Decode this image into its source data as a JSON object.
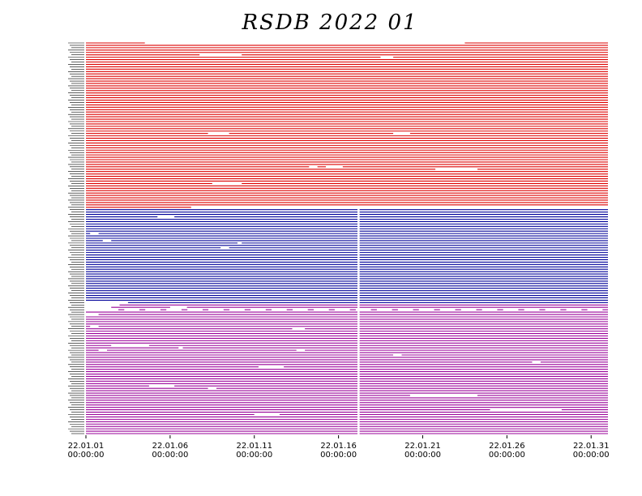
{
  "chart_data": {
    "type": "timeline",
    "title": "RSDB  2022  01",
    "xlabel": "",
    "ylabel": "",
    "x_range": [
      "2022-01-01 00:00:00",
      "2022-02-01 00:00:00"
    ],
    "x_ticks": [
      {
        "date": "22.01.01",
        "time": "00:00:00"
      },
      {
        "date": "22.01.06",
        "time": "00:00:00"
      },
      {
        "date": "22.01.11",
        "time": "00:00:00"
      },
      {
        "date": "22.01.16",
        "time": "00:00:00"
      },
      {
        "date": "22.01.21",
        "time": "00:00:00"
      },
      {
        "date": "22.01.26",
        "time": "00:00:00"
      },
      {
        "date": "22.01.31",
        "time": "00:00:00"
      }
    ],
    "groups": [
      {
        "color": "#dd0000",
        "rows": 70,
        "gaps": [
          {
            "row": 0,
            "from": "2022-01-04 12:00",
            "to": "2022-01-23 12:00"
          },
          {
            "row": 5,
            "from": "2022-01-07 18:00",
            "to": "2022-01-10 06:00"
          },
          {
            "row": 6,
            "from": "2022-01-18 12:00",
            "to": "2022-01-19 06:00"
          },
          {
            "row": 38,
            "from": "2022-01-08 06:00",
            "to": "2022-01-09 12:00"
          },
          {
            "row": 38,
            "from": "2022-01-19 06:00",
            "to": "2022-01-20 06:00"
          },
          {
            "row": 52,
            "from": "2022-01-14 06:00",
            "to": "2022-01-14 18:00"
          },
          {
            "row": 52,
            "from": "2022-01-15 06:00",
            "to": "2022-01-16 06:00"
          },
          {
            "row": 53,
            "from": "2022-01-21 18:00",
            "to": "2022-01-24 06:00"
          },
          {
            "row": 59,
            "from": "2022-01-08 12:00",
            "to": "2022-01-10 06:00"
          },
          {
            "row": 69,
            "from": "2022-01-07 06:00",
            "to": "2022-02-01 00:00"
          }
        ]
      },
      {
        "color": "#000099",
        "rows": 40,
        "gaps": [
          {
            "row": 3,
            "from": "2022-01-05 06:00",
            "to": "2022-01-06 06:00"
          },
          {
            "row": 10,
            "from": "2022-01-01 06:00",
            "to": "2022-01-01 18:00"
          },
          {
            "row": 13,
            "from": "2022-01-02 00:00",
            "to": "2022-01-02 12:00"
          },
          {
            "row": 14,
            "from": "2022-01-10 00:00",
            "to": "2022-01-10 06:00"
          },
          {
            "row": 16,
            "from": "2022-01-09 00:00",
            "to": "2022-01-09 12:00"
          },
          {
            "row": 39,
            "from": "2022-01-01 00:00",
            "to": "2022-01-03 12:00"
          }
        ]
      },
      {
        "color": "#990099",
        "rows": 55,
        "gaps": [
          {
            "row": 0,
            "from": "2022-01-01 00:00",
            "to": "2022-01-03 00:00"
          },
          {
            "row": 1,
            "from": "2022-01-01 00:00",
            "to": "2022-01-02 12:00"
          },
          {
            "row": 1,
            "from": "2022-01-06 00:00",
            "to": "2022-01-07 00:00"
          },
          {
            "row": 2,
            "from": "2022-01-01 00:00",
            "to": "2022-01-03 00:00"
          },
          {
            "row": 4,
            "from": "2022-01-01 00:00",
            "to": "2022-01-01 18:00"
          },
          {
            "row": 9,
            "from": "2022-01-01 06:00",
            "to": "2022-01-01 18:00"
          },
          {
            "row": 10,
            "from": "2022-01-13 06:00",
            "to": "2022-01-14 00:00"
          },
          {
            "row": 17,
            "from": "2022-01-02 12:00",
            "to": "2022-01-04 18:00"
          },
          {
            "row": 18,
            "from": "2022-01-06 12:00",
            "to": "2022-01-06 18:00"
          },
          {
            "row": 19,
            "from": "2022-01-01 18:00",
            "to": "2022-01-02 06:00"
          },
          {
            "row": 19,
            "from": "2022-01-13 12:00",
            "to": "2022-01-14 00:00"
          },
          {
            "row": 21,
            "from": "2022-01-19 06:00",
            "to": "2022-01-19 18:00"
          },
          {
            "row": 24,
            "from": "2022-01-27 12:00",
            "to": "2022-01-28 00:00"
          },
          {
            "row": 26,
            "from": "2022-01-11 06:00",
            "to": "2022-01-12 18:00"
          },
          {
            "row": 34,
            "from": "2022-01-04 18:00",
            "to": "2022-01-06 06:00"
          },
          {
            "row": 35,
            "from": "2022-01-08 06:00",
            "to": "2022-01-08 18:00"
          },
          {
            "row": 38,
            "from": "2022-01-20 06:00",
            "to": "2022-01-24 06:00"
          },
          {
            "row": 44,
            "from": "2022-01-25 00:00",
            "to": "2022-01-29 06:00"
          },
          {
            "row": 46,
            "from": "2022-01-11 00:00",
            "to": "2022-01-12 12:00"
          }
        ]
      }
    ],
    "global_gap": {
      "from": "2022-01-17 03:00",
      "to": "2022-01-17 06:00",
      "row_from": 70
    },
    "dashed_row": {
      "row": 112,
      "dash_days": 0.35,
      "gap_days": 0.9
    },
    "grid": false,
    "legend": "none"
  }
}
